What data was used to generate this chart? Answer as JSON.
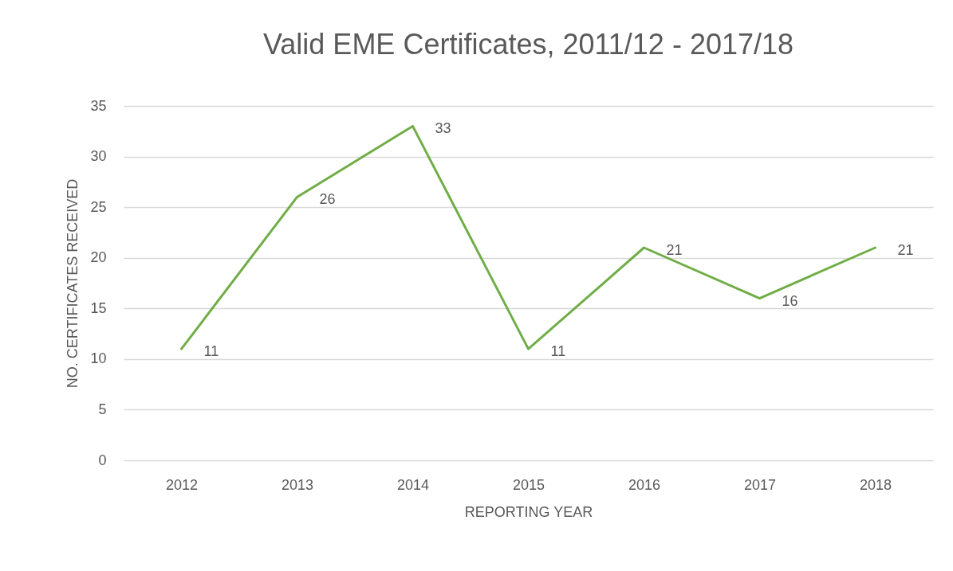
{
  "chart_data": {
    "type": "line",
    "title": "Valid EME Certificates,  2011/12 - 2017/18",
    "xlabel": "REPORTING YEAR",
    "ylabel": "NO. CERTIFICATES RECEIVED",
    "categories": [
      "2012",
      "2013",
      "2014",
      "2015",
      "2016",
      "2017",
      "2018"
    ],
    "series": [
      {
        "color": "#70ad47",
        "values": [
          11,
          26,
          33,
          11,
          21,
          16,
          21
        ]
      }
    ],
    "ylim": [
      0,
      35
    ],
    "yticks": [
      0,
      5,
      10,
      15,
      20,
      25,
      30,
      35
    ],
    "grid": "y",
    "data_labels": true
  }
}
